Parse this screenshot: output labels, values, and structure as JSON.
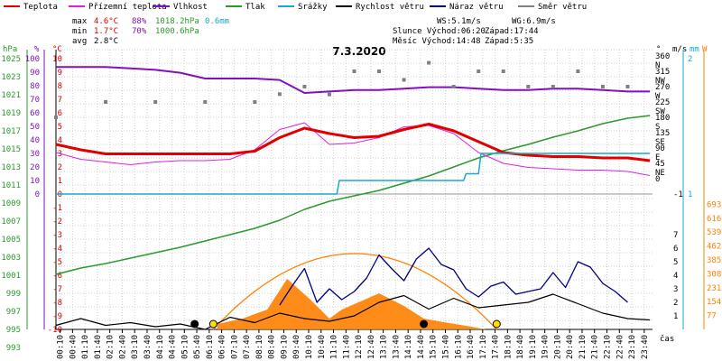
{
  "legend": [
    {
      "label": "Teplota",
      "color": "#e00000"
    },
    {
      "label": "Přízemní teplota",
      "color": "#e020e0"
    },
    {
      "label": "Vlhkost",
      "color": "#8010c0"
    },
    {
      "label": "Tlak",
      "color": "#2a9a2a"
    },
    {
      "label": "Srážky",
      "color": "#18a8d0"
    },
    {
      "label": "Rychlost větru",
      "color": "#000000"
    },
    {
      "label": "Náraz větru",
      "color": "#000080"
    },
    {
      "label": "Směr větru",
      "color": "#808080"
    }
  ],
  "stats": {
    "max_label": "max",
    "min_label": "min",
    "avg_label": "avg",
    "max_temp": "4.6°C",
    "max_hum": "88%",
    "max_press": "1018.2hPa",
    "max_rain": "0.6mm",
    "min_temp": "1.7°C",
    "min_hum": "70%",
    "min_press": "1000.6hPa",
    "avg_temp": "2.8°C",
    "ws": "WS:5.1m/s",
    "wg": "WG:6.9m/s",
    "slunce": "Slunce Východ:06:20",
    "slunce_zapad": "Západ:17:44",
    "mesic": "Měsíc  Východ:14:48",
    "mesic_zapad": "Západ:5:35"
  },
  "colors": {
    "temp": "#e00000",
    "ground": "#e020e0",
    "hum": "#8010c0",
    "press": "#2a9a2a",
    "rain": "#18a8d0",
    "wind": "#000000",
    "gust": "#000080",
    "dir": "#808080",
    "sun": "#ff8000",
    "sunfill": "#ff8000",
    "grid": "#d0d0d0"
  },
  "chart_data": {
    "type": "line",
    "title": "7.3.2020",
    "xlabel": "čas",
    "x_ticks": [
      "00:10",
      "00:40",
      "01:10",
      "01:40",
      "02:10",
      "02:40",
      "03:10",
      "03:40",
      "04:10",
      "04:40",
      "05:10",
      "05:40",
      "06:10",
      "06:40",
      "07:10",
      "07:40",
      "08:10",
      "08:40",
      "09:10",
      "09:40",
      "10:10",
      "10:40",
      "11:10",
      "11:40",
      "12:10",
      "12:40",
      "13:10",
      "13:40",
      "14:10",
      "14:40",
      "15:10",
      "15:40",
      "16:10",
      "16:40",
      "17:10",
      "17:40",
      "18:10",
      "18:40",
      "19:10",
      "19:40",
      "20:10",
      "20:40",
      "21:10",
      "21:40",
      "22:10",
      "22:40",
      "23:10",
      "23:40"
    ],
    "axes": {
      "pressure_hPa": {
        "ticks": [
          "1025",
          "1023",
          "1021",
          "1019",
          "1017",
          "1015",
          "1013",
          "1011",
          "1009",
          "1007",
          "1005",
          "1003",
          "1001",
          "999",
          "997",
          "995",
          "993"
        ],
        "unit": "hPa"
      },
      "humidity_pct": {
        "ticks": [
          "100",
          "90",
          "80",
          "70",
          "60",
          "50",
          "40",
          "30",
          "20",
          "10",
          "0"
        ],
        "unit": "%"
      },
      "temperature_C": {
        "ticks": [
          "10",
          "9",
          "8",
          "7",
          "6",
          "5",
          "4",
          "3",
          "2",
          "1",
          "0",
          "-1",
          "-2",
          "-3",
          "-4",
          "-5",
          "-6",
          "-7",
          "-8",
          "-9",
          "-10"
        ],
        "unit": "°C"
      },
      "wind_dir_deg": {
        "ticks": [
          "360",
          "315",
          "270",
          "225",
          "180",
          "135",
          "90",
          "45",
          "0"
        ],
        "labels": [
          "N",
          "NW",
          "W",
          "SW",
          "S",
          "SE",
          "E",
          "NE"
        ],
        "unit": "°"
      },
      "wind_speed": {
        "ticks": [
          "7",
          "6",
          "5",
          "4",
          "3",
          "2",
          "1",
          "-1"
        ],
        "unit": "m/s"
      },
      "rain_mm": {
        "ticks": [
          "2",
          "1"
        ],
        "unit": "mm"
      },
      "solar_W": {
        "ticks": [
          "693",
          "616",
          "539",
          "462",
          "385",
          "308",
          "231",
          "154",
          "77"
        ],
        "unit": "W"
      }
    },
    "series": [
      {
        "name": "Teplota",
        "unit": "°C",
        "x": [
          0,
          1,
          2,
          3,
          4,
          5,
          6,
          7,
          8,
          9,
          10,
          11,
          12,
          13,
          14,
          15,
          16,
          17,
          18,
          19,
          20,
          21,
          22,
          23,
          23.9
        ],
        "values": [
          3.0,
          2.6,
          2.3,
          2.3,
          2.3,
          2.3,
          2.3,
          2.3,
          2.5,
          3.5,
          4.2,
          3.8,
          3.5,
          3.6,
          4.1,
          4.5,
          4.0,
          3.2,
          2.4,
          2.2,
          2.1,
          2.1,
          2.0,
          2.0,
          1.8
        ]
      },
      {
        "name": "Přízemní teplota",
        "unit": "°C",
        "x": [
          0,
          1,
          2,
          3,
          4,
          5,
          6,
          7,
          8,
          9,
          10,
          11,
          12,
          13,
          14,
          15,
          16,
          17,
          18,
          19,
          20,
          21,
          22,
          23,
          23.9
        ],
        "values": [
          2.4,
          1.9,
          1.7,
          1.5,
          1.7,
          1.8,
          1.8,
          1.9,
          2.6,
          4.1,
          4.6,
          3.0,
          3.1,
          3.5,
          4.3,
          4.4,
          3.8,
          2.4,
          1.6,
          1.3,
          1.2,
          1.1,
          1.1,
          1.0,
          0.7
        ]
      },
      {
        "name": "Vlhkost",
        "unit": "%",
        "x": [
          0,
          1,
          2,
          3,
          4,
          5,
          6,
          7,
          8,
          9,
          10,
          11,
          12,
          13,
          14,
          15,
          16,
          17,
          18,
          19,
          20,
          21,
          22,
          23,
          23.9
        ],
        "values": [
          88,
          88,
          88,
          87,
          86,
          84,
          80,
          80,
          80,
          79,
          70,
          71,
          72,
          72,
          73,
          74,
          74,
          73,
          72,
          72,
          73,
          73,
          72,
          71,
          71
        ]
      },
      {
        "name": "Tlak",
        "unit": "hPa",
        "x": [
          0,
          1,
          2,
          3,
          4,
          5,
          6,
          7,
          8,
          9,
          10,
          11,
          12,
          13,
          14,
          15,
          16,
          17,
          18,
          19,
          20,
          21,
          22,
          23,
          23.9
        ],
        "values": [
          1000.6,
          1001.3,
          1001.8,
          1002.4,
          1003.0,
          1003.6,
          1004.3,
          1005.0,
          1005.7,
          1006.6,
          1007.8,
          1008.7,
          1009.3,
          1009.9,
          1010.7,
          1011.5,
          1012.5,
          1013.5,
          1014.3,
          1015.0,
          1015.8,
          1016.5,
          1017.3,
          1017.9,
          1018.2
        ]
      },
      {
        "name": "Srážky",
        "unit": "mm",
        "x": [
          0,
          11.3,
          11.4,
          16.4,
          16.5,
          17.0,
          17.1,
          23.9
        ],
        "values": [
          0,
          0,
          0.2,
          0.2,
          0.3,
          0.3,
          0.6,
          0.6
        ]
      },
      {
        "name": "Rychlost větru",
        "unit": "m/s",
        "x": [
          0,
          1,
          2,
          3,
          4,
          5,
          6,
          7,
          8,
          9,
          10,
          11,
          12,
          13,
          14,
          15,
          16,
          17,
          18,
          19,
          20,
          21,
          22,
          23,
          23.9
        ],
        "values": [
          0.3,
          0.8,
          0.3,
          0.5,
          0.2,
          0.4,
          0.0,
          0.9,
          0.5,
          1.2,
          0.8,
          0.6,
          1.0,
          2.0,
          2.5,
          1.5,
          2.3,
          1.6,
          1.8,
          2.0,
          2.6,
          1.9,
          1.2,
          0.8,
          0.7
        ]
      },
      {
        "name": "Náraz větru",
        "unit": "m/s",
        "x": [
          9,
          9.5,
          10,
          10.5,
          11,
          11.5,
          12,
          12.5,
          13,
          13.5,
          14,
          14.5,
          15,
          15.5,
          16,
          16.5,
          17,
          17.5,
          18,
          18.5,
          19,
          19.5,
          20,
          20.5,
          21,
          21.5,
          22,
          22.5,
          23
        ],
        "values": [
          1.8,
          3.2,
          4.5,
          2.0,
          3.0,
          2.2,
          2.8,
          3.8,
          5.5,
          4.5,
          3.6,
          5.2,
          6.0,
          4.8,
          4.4,
          3.0,
          2.4,
          3.2,
          3.5,
          2.6,
          2.8,
          3.0,
          4.2,
          3.1,
          5.0,
          4.6,
          3.4,
          2.8,
          2.0
        ]
      },
      {
        "name": "Směr větru",
        "unit": "°",
        "x": [
          0,
          2,
          4,
          6,
          8,
          9,
          10,
          11,
          12,
          13,
          14,
          15,
          16,
          17,
          18,
          19,
          20,
          21,
          22,
          23
        ],
        "values": [
          180,
          225,
          225,
          225,
          225,
          248,
          270,
          247,
          315,
          315,
          290,
          340,
          270,
          315,
          315,
          270,
          270,
          315,
          270,
          270
        ]
      }
    ],
    "sun_elevation_W": {
      "x": [
        6.33,
        12.0,
        17.73
      ],
      "values": [
        0,
        420,
        0
      ]
    },
    "solar_radiation_W": {
      "x": [
        6.5,
        7.5,
        8.5,
        9.3,
        10.2,
        11.0,
        11.5,
        12.0,
        13.0,
        14.0,
        14.8,
        15.6,
        16.5,
        17.3
      ],
      "values": [
        30,
        60,
        110,
        280,
        170,
        60,
        110,
        140,
        200,
        130,
        60,
        40,
        20,
        0
      ]
    },
    "markers": [
      {
        "name": "Slunce východ",
        "x": 6.33
      },
      {
        "name": "Slunce západ",
        "x": 17.73
      },
      {
        "name": "Měsíc východ",
        "x": 14.8
      },
      {
        "name": "Měsíc západ",
        "x": 5.58
      }
    ],
    "grid": true,
    "legend_position": "top"
  }
}
